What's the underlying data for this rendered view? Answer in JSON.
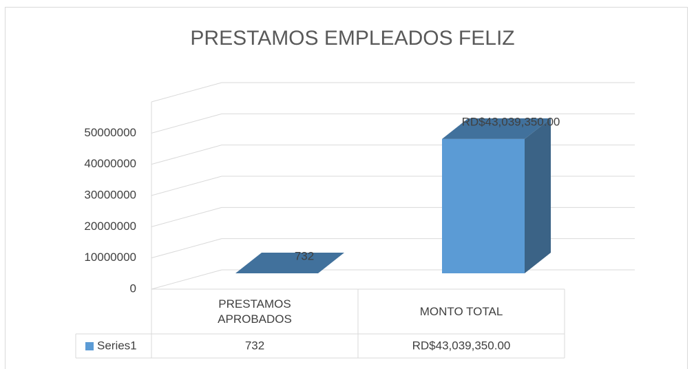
{
  "chart_data": {
    "type": "bar3d",
    "title": "PRESTAMOS EMPLEADOS FELIZ",
    "categories": [
      "PRESTAMOS APROBADOS",
      "MONTO TOTAL"
    ],
    "series": [
      {
        "name": "Series1",
        "color": "#5b9bd5",
        "values": [
          732,
          43039350
        ],
        "value_labels": [
          "732",
          "RD$43,039,350.00"
        ]
      }
    ],
    "ylim": [
      0,
      60000000
    ],
    "yticks": [
      0,
      10000000,
      20000000,
      30000000,
      40000000,
      50000000
    ],
    "grid": true,
    "data_table": true
  }
}
